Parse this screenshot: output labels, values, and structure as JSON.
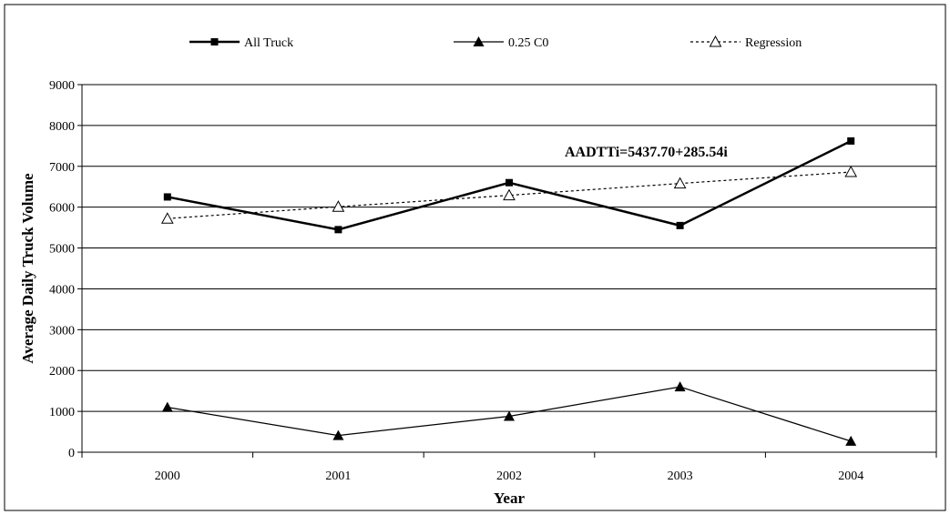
{
  "chart_data": {
    "type": "line",
    "categories": [
      "2000",
      "2001",
      "2002",
      "2003",
      "2004"
    ],
    "xlabel": "Year",
    "ylabel": "Average Daily Truck Volume",
    "ylim": [
      0,
      9000
    ],
    "yticks": [
      0,
      1000,
      2000,
      3000,
      4000,
      5000,
      6000,
      7000,
      8000,
      9000
    ],
    "grid": "horizontal",
    "legend_position": "top",
    "annotation": "AADTTi=5437.70+285.54i",
    "series": [
      {
        "name": "All Truck",
        "values": [
          6250,
          5450,
          6600,
          5550,
          7620
        ],
        "color": "#000000",
        "line_style": "solid-thick",
        "marker": "square"
      },
      {
        "name": "0.25 C0",
        "values": [
          1100,
          410,
          880,
          1600,
          270
        ],
        "color": "#000000",
        "line_style": "solid-thin",
        "marker": "triangle-filled"
      },
      {
        "name": "Regression",
        "values": [
          5720,
          6010,
          6290,
          6580,
          6860
        ],
        "color": "#000000",
        "line_style": "dotted",
        "marker": "triangle-open"
      }
    ]
  }
}
